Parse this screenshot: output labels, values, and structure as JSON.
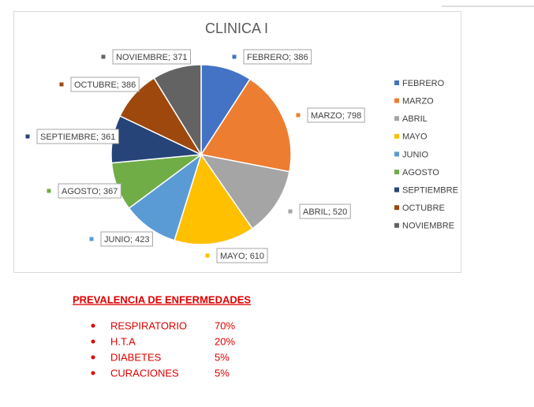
{
  "chart_data": {
    "type": "pie",
    "title": "CLINICA I",
    "categories": [
      "FEBRERO",
      "MARZO",
      "ABRIL",
      "MAYO",
      "JUNIO",
      "AGOSTO",
      "SEPTIEMBRE",
      "OCTUBRE",
      "NOVIEMBRE"
    ],
    "values": [
      386,
      798,
      520,
      610,
      423,
      367,
      361,
      386,
      371
    ],
    "value_labels": [
      "FEBRERO; 386",
      "MARZO; 798",
      "ABRIL; 520",
      "MAYO; 610",
      "JUNIO; 423",
      "AGOSTO; 367",
      "SEPTIEMBRE; 361",
      "OCTUBRE; 386",
      "NOVIEMBRE; 371"
    ],
    "colors": [
      "#4472c4",
      "#ed7d31",
      "#a5a5a5",
      "#ffc000",
      "#5b9bd5",
      "#70ad47",
      "#264478",
      "#9e480e",
      "#636363"
    ],
    "legend": "right"
  },
  "document": {
    "heading": "PREVALENCIA DE ENFERMEDADES",
    "items": [
      [
        "RESPIRATORIO",
        "70%"
      ],
      [
        "H.T.A",
        "20%"
      ],
      [
        "DIABETES",
        "5%"
      ],
      [
        "CURACIONES",
        "5%"
      ]
    ]
  }
}
